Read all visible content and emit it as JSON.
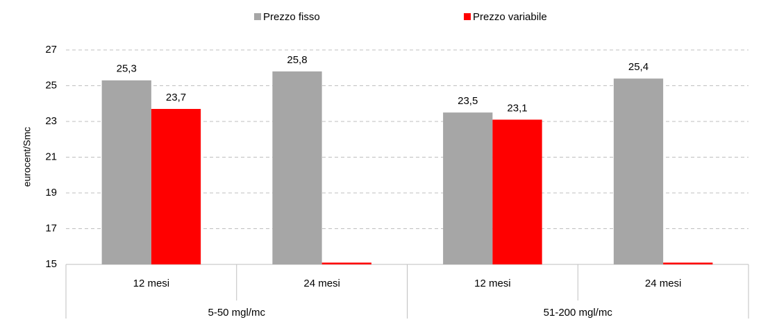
{
  "chart_data": {
    "type": "bar",
    "categories": [
      "12 mesi",
      "24 mesi",
      "12 mesi",
      "24 mesi"
    ],
    "groups": [
      "5-50 mgl/mc",
      "51-200 mgl/mc"
    ],
    "y_label": "eurocent/Smc",
    "series": [
      {
        "name": "Prezzo fisso",
        "color": "#a6a6a6",
        "values": [
          25.3,
          25.8,
          23.5,
          25.4
        ],
        "value_labels": [
          "25,3",
          "25,8",
          "23,5",
          "25,4"
        ]
      },
      {
        "name": "Prezzo variabile",
        "color": "#ff0000",
        "values": [
          23.7,
          15.1,
          23.1,
          15.1
        ],
        "value_labels": [
          "23,7",
          null,
          "23,1",
          null
        ]
      }
    ],
    "ylim": [
      15,
      27
    ],
    "yticks": [
      15,
      17,
      19,
      21,
      23,
      25,
      27
    ],
    "grid": true,
    "legend": "top"
  }
}
